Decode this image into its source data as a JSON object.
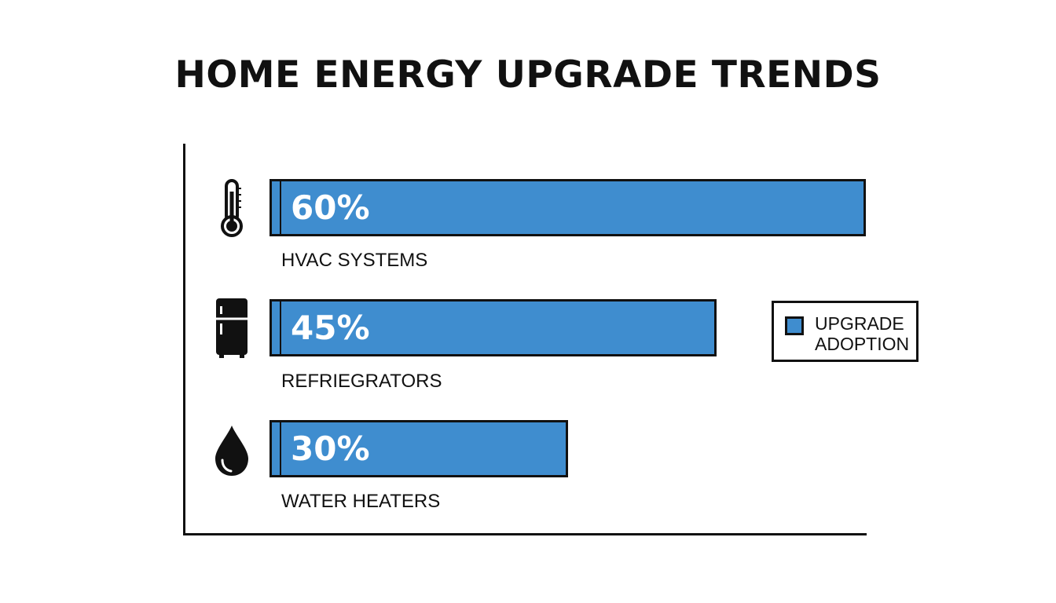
{
  "chart_data": {
    "type": "bar",
    "orientation": "horizontal",
    "title": "HOME ENERGY UPGRADE TRENDS",
    "xlabel": "",
    "ylabel": "",
    "categories": [
      "HVAC SYSTEMS",
      "REFRIEGRATORS",
      "WATER HEATERS"
    ],
    "series": [
      {
        "name": "UPGRADE ADOPTION",
        "values": [
          60,
          45,
          30
        ],
        "labels": [
          "60%",
          "45%",
          "30%"
        ],
        "color": "#3f8dcf"
      }
    ],
    "icons": [
      "thermometer-icon",
      "refrigerator-icon",
      "water-drop-icon"
    ],
    "grid": false,
    "legend_position": "right"
  }
}
